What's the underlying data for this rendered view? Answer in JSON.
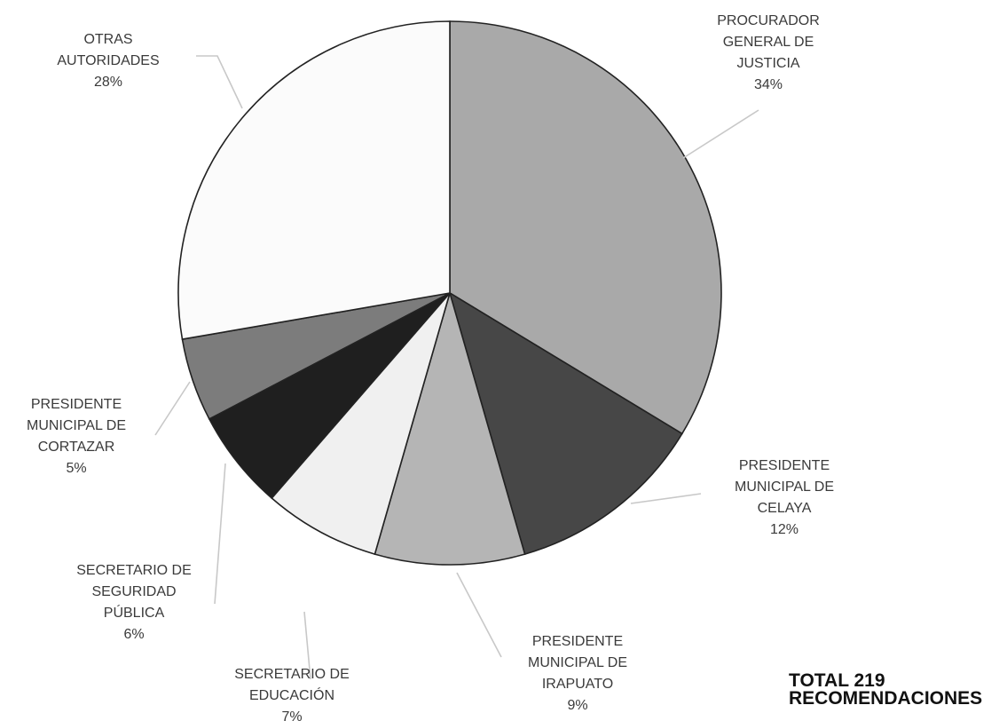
{
  "chart_data": {
    "type": "pie",
    "title": "",
    "slices": [
      {
        "label": [
          "PROCURADOR",
          "GENERAL DE",
          "JUSTICIA"
        ],
        "value": 34,
        "value_label": "34%",
        "color": "#a9a9a9"
      },
      {
        "label": [
          "PRESIDENTE",
          "MUNICIPAL DE",
          "CELAYA"
        ],
        "value": 12,
        "value_label": "12%",
        "color": "#474747"
      },
      {
        "label": [
          "PRESIDENTE",
          "MUNICIPAL DE",
          "IRAPUATO"
        ],
        "value": 9,
        "value_label": "9%",
        "color": "#b5b5b5"
      },
      {
        "label": [
          "SECRETARIO DE",
          "EDUCACIÓN"
        ],
        "value": 7,
        "value_label": "7%",
        "color": "#f0f0f0"
      },
      {
        "label": [
          "SECRETARIO DE",
          "SEGURIDAD",
          "PÚBLICA"
        ],
        "value": 6,
        "value_label": "6%",
        "color": "#1f1f1f"
      },
      {
        "label": [
          "PRESIDENTE",
          "MUNICIPAL DE",
          "CORTAZAR"
        ],
        "value": 5,
        "value_label": "5%",
        "color": "#7c7c7c"
      },
      {
        "label": [
          "OTRAS",
          "AUTORIDADES"
        ],
        "value": 28,
        "value_label": "28%",
        "color": "#fbfbfb"
      }
    ]
  },
  "total": {
    "line1": "TOTAL   219",
    "line2": "RECOMENDACIONES"
  }
}
